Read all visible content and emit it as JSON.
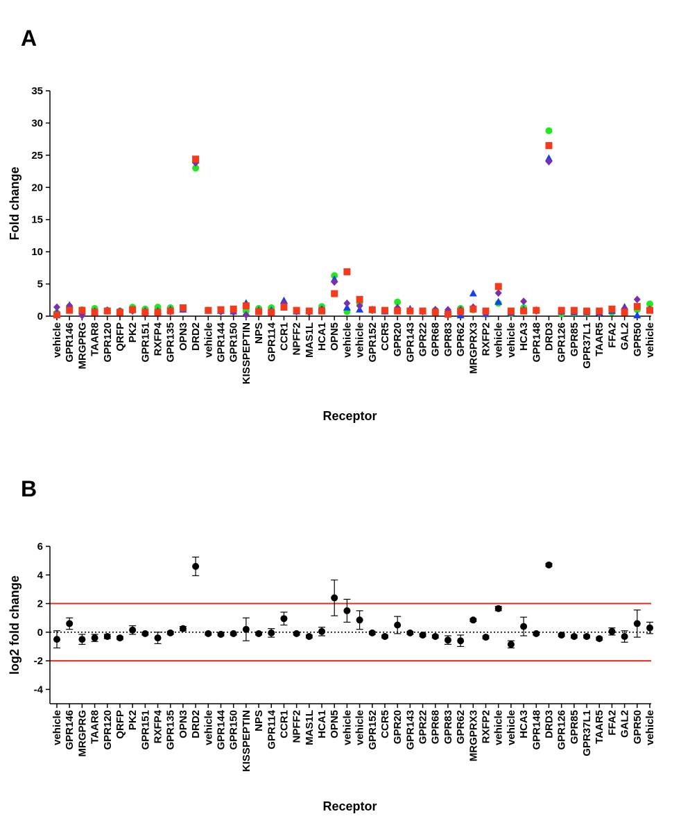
{
  "chart_data": [
    {
      "type": "scatter",
      "panel_label": "A",
      "xlabel": "Receptor",
      "ylabel": "Fold change",
      "ylim": [
        0,
        35
      ],
      "yticks": [
        0,
        5,
        10,
        15,
        20,
        25,
        30,
        35
      ],
      "grid": false,
      "categories": [
        "vehicle",
        "GPR146",
        "MRGPRG",
        "TAAR8",
        "GPR120",
        "QRFP",
        "PK2",
        "GPR151",
        "RXFP4",
        "GPR135",
        "OPN3",
        "DRD2",
        "vehicle",
        "GPR144",
        "GPR150",
        "KISSPEPTIN",
        "NPS",
        "GPR114",
        "CCR1",
        "NPFF2",
        "MAS1L",
        "HCA1",
        "OPN5",
        "vehicle",
        "vehicle",
        "GPR152",
        "CCR5",
        "GPR20",
        "GPR143",
        "GPR22",
        "GPR68",
        "GPR83",
        "GPR62",
        "MRGPRX3",
        "RXFP2",
        "vehicle",
        "vehicle",
        "HCA3",
        "GPR148",
        "DRD3",
        "GPR126",
        "GPR85",
        "GPR37L1",
        "TAAR5",
        "FFA2",
        "GAL2",
        "GPR50",
        "vehicle"
      ],
      "series": [
        {
          "marker": "circle",
          "color": "#22e822",
          "values": [
            0.5,
            1.5,
            1.0,
            1.2,
            0.9,
            0.8,
            1.4,
            1.1,
            1.4,
            1.3,
            1.2,
            23.0,
            0.9,
            0.8,
            0.8,
            0.8,
            1.2,
            1.3,
            1.6,
            0.8,
            0.8,
            1.5,
            6.3,
            0.7,
            2.0,
            1.0,
            0.8,
            2.2,
            0.8,
            0.8,
            0.9,
            0.6,
            1.2,
            1.0,
            0.5,
            2.0,
            0.4,
            1.3,
            0.9,
            28.8,
            0.4,
            0.5,
            0.5,
            0.5,
            0.6,
            0.6,
            1.0,
            1.9
          ]
        },
        {
          "marker": "triangle",
          "color": "#1540f0",
          "values": [
            0.6,
            1.7,
            0.7,
            0.6,
            0.9,
            0.7,
            1.0,
            0.8,
            0.8,
            1.0,
            1.0,
            24.2,
            0.8,
            0.8,
            0.7,
            2.0,
            0.9,
            0.9,
            2.4,
            0.7,
            0.7,
            1.0,
            5.7,
            1.3,
            1.0,
            1.0,
            0.7,
            1.3,
            1.1,
            0.7,
            1.0,
            0.8,
            0.1,
            3.5,
            0.3,
            2.2,
            0.5,
            1.0,
            0.9,
            24.5,
            0.7,
            0.6,
            0.6,
            0.5,
            0.8,
            1.4,
            0.1,
            1.0
          ]
        },
        {
          "marker": "diamond",
          "color": "#7a30a8",
          "values": [
            1.4,
            1.6,
            0.1,
            0.8,
            0.8,
            0.8,
            0.8,
            0.7,
            0.6,
            0.7,
            1.1,
            23.8,
            0.9,
            0.7,
            0.6,
            0.2,
            0.8,
            0.7,
            2.0,
            0.7,
            0.6,
            1.1,
            5.3,
            2.0,
            1.6,
            0.9,
            0.8,
            1.3,
            0.9,
            0.7,
            1.0,
            1.0,
            1.0,
            1.4,
            0.5,
            3.6,
            0.5,
            2.3,
            0.8,
            24.0,
            0.7,
            0.6,
            0.6,
            0.5,
            1.0,
            1.2,
            2.6,
            1.1
          ]
        },
        {
          "marker": "square",
          "color": "#f43a1a",
          "values": [
            0.2,
            0.9,
            0.9,
            0.6,
            0.8,
            0.6,
            1.0,
            0.6,
            0.6,
            0.8,
            1.3,
            24.4,
            0.9,
            1.0,
            1.1,
            1.6,
            0.7,
            0.6,
            1.4,
            0.9,
            0.8,
            0.8,
            3.5,
            6.9,
            2.6,
            1.0,
            0.9,
            0.8,
            0.8,
            0.8,
            0.6,
            0.3,
            0.7,
            1.1,
            0.8,
            4.6,
            0.8,
            0.8,
            0.9,
            26.5,
            0.9,
            0.9,
            0.8,
            0.8,
            1.1,
            0.6,
            1.5,
            0.9
          ]
        }
      ]
    },
    {
      "type": "scatter",
      "panel_label": "B",
      "xlabel": "Receptor",
      "ylabel": "log2 fold change",
      "ylim": [
        -5,
        6
      ],
      "yticks": [
        -4,
        -2,
        0,
        2,
        4,
        6
      ],
      "grid": false,
      "reference_lines": [
        {
          "y": 2,
          "color": "#e8281c",
          "style": "solid"
        },
        {
          "y": -2,
          "color": "#e8281c",
          "style": "solid"
        },
        {
          "y": 0,
          "color": "#000000",
          "style": "dotted"
        }
      ],
      "categories": [
        "vehicle",
        "GPR146",
        "MRGPRG",
        "TAAR8",
        "GPR120",
        "QRFP",
        "PK2",
        "GPR151",
        "RXFP4",
        "GPR135",
        "OPN3",
        "DRD2",
        "vehicle",
        "GPR144",
        "GPR150",
        "KISSPEPTIN",
        "NPS",
        "GPR114",
        "CCR1",
        "NPFF2",
        "MAS1L",
        "HCA1",
        "OPN5",
        "vehicle",
        "vehicle",
        "GPR152",
        "CCR5",
        "GPR20",
        "GPR143",
        "GPR22",
        "GPR68",
        "GPR83",
        "GPR62",
        "MRGPRX3",
        "RXFP2",
        "vehicle",
        "vehicle",
        "HCA3",
        "GPR148",
        "DRD3",
        "GPR126",
        "GPR85",
        "GPR37L1",
        "TAAR5",
        "FFA2",
        "GAL2",
        "GPR50",
        "vehicle"
      ],
      "series": [
        {
          "marker": "circle",
          "color": "#000000",
          "values": [
            -0.5,
            0.6,
            -0.5,
            -0.4,
            -0.3,
            -0.4,
            0.15,
            -0.1,
            -0.4,
            -0.05,
            0.25,
            4.6,
            -0.1,
            -0.15,
            -0.1,
            0.2,
            -0.1,
            -0.05,
            0.95,
            -0.1,
            -0.3,
            0.05,
            2.4,
            1.5,
            0.85,
            -0.05,
            -0.3,
            0.5,
            -0.05,
            -0.2,
            -0.3,
            -0.55,
            -0.6,
            0.85,
            -0.35,
            1.65,
            -0.85,
            0.4,
            -0.1,
            4.7,
            -0.2,
            -0.3,
            -0.3,
            -0.45,
            0.05,
            -0.3,
            0.6,
            0.3
          ],
          "errors": [
            0.6,
            0.4,
            0.35,
            0.25,
            0.15,
            0.1,
            0.3,
            0.1,
            0.4,
            0.1,
            0.15,
            0.65,
            0.1,
            0.1,
            0.1,
            0.8,
            0.1,
            0.3,
            0.45,
            0.1,
            0.1,
            0.3,
            1.25,
            0.8,
            0.65,
            0.1,
            0.1,
            0.6,
            0.1,
            0.1,
            0.1,
            0.3,
            0.4,
            0.1,
            0.1,
            0.15,
            0.25,
            0.65,
            0.1,
            0.1,
            0.1,
            0.1,
            0.1,
            0.1,
            0.25,
            0.4,
            0.95,
            0.4
          ]
        }
      ]
    }
  ]
}
